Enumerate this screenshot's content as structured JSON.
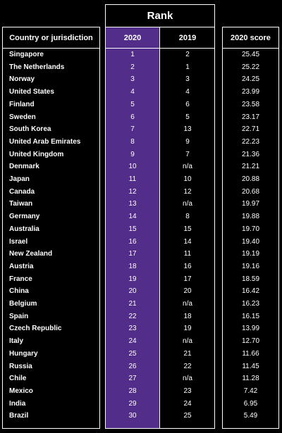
{
  "header": {
    "rank": "Rank",
    "country": "Country or jurisdiction",
    "y2020": "2020",
    "y2019": "2019",
    "score": "2020 score"
  },
  "rows": [
    {
      "country": "Singapore",
      "r2020": "1",
      "r2019": "2",
      "score": "25.45"
    },
    {
      "country": "The Netherlands",
      "r2020": "2",
      "r2019": "1",
      "score": "25.22"
    },
    {
      "country": "Norway",
      "r2020": "3",
      "r2019": "3",
      "score": "24.25"
    },
    {
      "country": "United States",
      "r2020": "4",
      "r2019": "4",
      "score": "23.99"
    },
    {
      "country": "Finland",
      "r2020": "5",
      "r2019": "6",
      "score": "23.58"
    },
    {
      "country": "Sweden",
      "r2020": "6",
      "r2019": "5",
      "score": "23.17"
    },
    {
      "country": "South Korea",
      "r2020": "7",
      "r2019": "13",
      "score": "22.71"
    },
    {
      "country": "United Arab Emirates",
      "r2020": "8",
      "r2019": "9",
      "score": "22.23"
    },
    {
      "country": "United Kingdom",
      "r2020": "9",
      "r2019": "7",
      "score": "21.36"
    },
    {
      "country": "Denmark",
      "r2020": "10",
      "r2019": "n/a",
      "score": "21.21"
    },
    {
      "country": "Japan",
      "r2020": "11",
      "r2019": "10",
      "score": "20.88"
    },
    {
      "country": "Canada",
      "r2020": "12",
      "r2019": "12",
      "score": "20.68"
    },
    {
      "country": "Taiwan",
      "r2020": "13",
      "r2019": "n/a",
      "score": "19.97"
    },
    {
      "country": "Germany",
      "r2020": "14",
      "r2019": "8",
      "score": "19.88"
    },
    {
      "country": "Australia",
      "r2020": "15",
      "r2019": "15",
      "score": "19.70"
    },
    {
      "country": "Israel",
      "r2020": "16",
      "r2019": "14",
      "score": "19.40"
    },
    {
      "country": "New Zealand",
      "r2020": "17",
      "r2019": "11",
      "score": "19.19"
    },
    {
      "country": "Austria",
      "r2020": "18",
      "r2019": "16",
      "score": "19.16"
    },
    {
      "country": "France",
      "r2020": "19",
      "r2019": "17",
      "score": "18.59"
    },
    {
      "country": "China",
      "r2020": "20",
      "r2019": "20",
      "score": "16.42"
    },
    {
      "country": "Belgium",
      "r2020": "21",
      "r2019": "n/a",
      "score": "16.23"
    },
    {
      "country": "Spain",
      "r2020": "22",
      "r2019": "18",
      "score": "16.15"
    },
    {
      "country": "Czech Republic",
      "r2020": "23",
      "r2019": "19",
      "score": "13.99"
    },
    {
      "country": "Italy",
      "r2020": "24",
      "r2019": "n/a",
      "score": "12.70"
    },
    {
      "country": "Hungary",
      "r2020": "25",
      "r2019": "21",
      "score": "11.66"
    },
    {
      "country": "Russia",
      "r2020": "26",
      "r2019": "22",
      "score": "11.45"
    },
    {
      "country": "Chile",
      "r2020": "27",
      "r2019": "n/a",
      "score": "11.28"
    },
    {
      "country": "Mexico",
      "r2020": "28",
      "r2019": "23",
      "score": "7.42"
    },
    {
      "country": "India",
      "r2020": "29",
      "r2019": "24",
      "score": "6.95"
    },
    {
      "country": "Brazil",
      "r2020": "30",
      "r2019": "25",
      "score": "5.49"
    }
  ],
  "colors": {
    "background": "#000000",
    "highlight_2020": "#522d8a",
    "text": "#ffffff"
  }
}
